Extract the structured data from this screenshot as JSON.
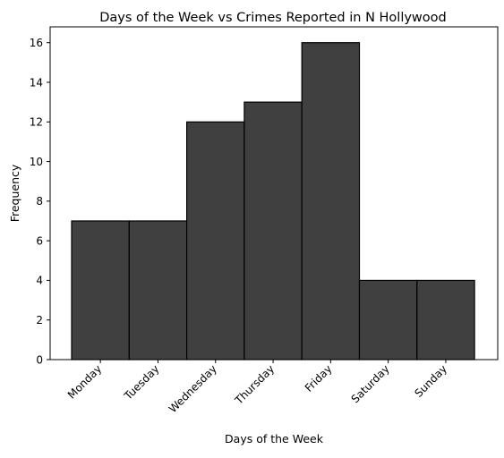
{
  "chart_data": {
    "type": "bar",
    "title": "Days of the Week vs Crimes Reported in N Hollywood",
    "xlabel": "Days of the Week",
    "ylabel": "Frequency",
    "categories": [
      "Monday",
      "Tuesday",
      "Wednesday",
      "Thursday",
      "Friday",
      "Saturday",
      "Sunday"
    ],
    "values": [
      7,
      7,
      12,
      13,
      16,
      4,
      4
    ],
    "ylim": [
      0,
      16.8
    ],
    "yticks": [
      0,
      2,
      4,
      6,
      8,
      10,
      12,
      14,
      16
    ],
    "grid": false,
    "bar_color": "#404040",
    "edge_color": "#000000"
  }
}
